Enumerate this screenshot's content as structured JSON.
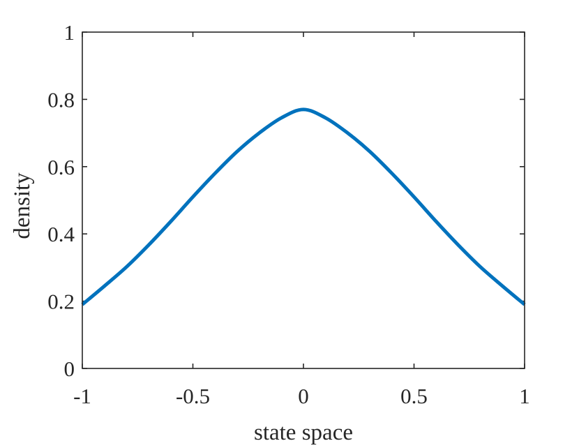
{
  "chart_data": {
    "type": "line",
    "title": "",
    "xlabel": "state space",
    "ylabel": "density",
    "xlim": [
      -1,
      1
    ],
    "ylim": [
      0,
      1
    ],
    "x_ticks": [
      -1,
      -0.5,
      0,
      0.5,
      1
    ],
    "x_tick_labels": [
      "-1",
      "-0.5",
      "0",
      "0.5",
      "1"
    ],
    "y_ticks": [
      0,
      0.2,
      0.4,
      0.6,
      0.8,
      1
    ],
    "y_tick_labels": [
      "0",
      "0.2",
      "0.4",
      "0.6",
      "0.8",
      "1"
    ],
    "grid": false,
    "box": true,
    "series": [
      {
        "color": "#0072BD",
        "x": [
          -1,
          -0.9,
          -0.8,
          -0.7,
          -0.6,
          -0.5,
          -0.4,
          -0.3,
          -0.2,
          -0.1,
          0,
          0.1,
          0.2,
          0.3,
          0.4,
          0.5,
          0.6,
          0.7,
          0.8,
          0.9,
          1
        ],
        "y": [
          0.19,
          0.245,
          0.302,
          0.367,
          0.437,
          0.51,
          0.58,
          0.645,
          0.7,
          0.745,
          0.77,
          0.745,
          0.7,
          0.645,
          0.58,
          0.51,
          0.437,
          0.367,
          0.302,
          0.245,
          0.19
        ]
      }
    ]
  }
}
